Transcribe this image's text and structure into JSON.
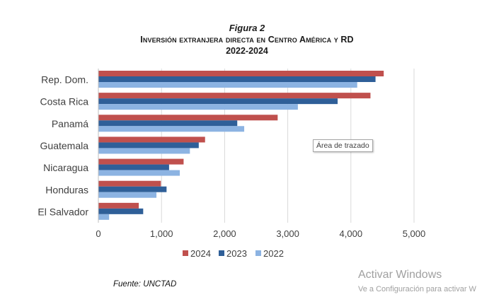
{
  "figure": {
    "label": "Figura 2",
    "title": "Inversión extranjera directa en Centro América y RD",
    "years": "2022-2024"
  },
  "chart_data": {
    "type": "bar",
    "orientation": "horizontal",
    "categories": [
      "Rep. Dom.",
      "Costa Rica",
      "Panamá",
      "Guatemala",
      "Nicaragua",
      "Honduras",
      "El Salvador"
    ],
    "series": [
      {
        "name": "2024",
        "color": "#c0504d",
        "values": [
          4520,
          4310,
          2840,
          1690,
          1350,
          990,
          640
        ]
      },
      {
        "name": "2023",
        "color": "#2f5f98",
        "values": [
          4390,
          3790,
          2200,
          1590,
          1120,
          1080,
          710
        ]
      },
      {
        "name": "2022",
        "color": "#8cb3e2",
        "values": [
          4100,
          3160,
          2310,
          1450,
          1290,
          920,
          170
        ]
      }
    ],
    "xlim": [
      0,
      5000
    ],
    "xticks": [
      0,
      1000,
      2000,
      3000,
      4000,
      5000
    ],
    "xtick_labels": [
      "0",
      "1,000",
      "2,000",
      "3,000",
      "4,000",
      "5,000"
    ],
    "grid": "vertical",
    "legend_position": "bottom"
  },
  "tooltip": "Área de trazado",
  "source": "Fuente: UNCTAD",
  "watermark": {
    "main": "Activar Windows",
    "sub": "Ve a Configuración para activar W"
  }
}
